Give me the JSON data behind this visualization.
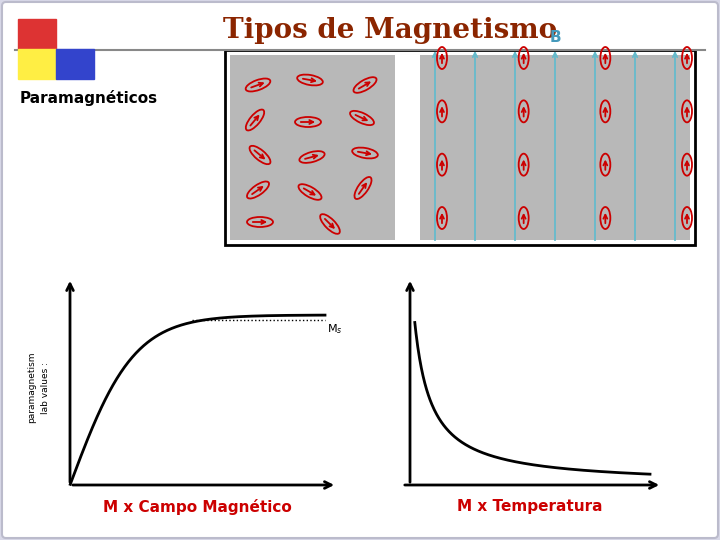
{
  "title": "Tipos de Magnetismo",
  "title_color": "#8B2500",
  "title_fontsize": 20,
  "outer_bg": "#D8D8E8",
  "paramagneticos_label": "Paramagnéticos",
  "xlabel1": "M x Campo Magnético",
  "xlabel2": "M x Temperatura",
  "ylabel1_line1": "paramagnetism",
  "ylabel1_line2": "lab values :",
  "ms_label": "M s",
  "label_color": "#CC0000",
  "separator_color": "#888888",
  "B_label_color": "#4499BB",
  "blue_line_color": "#66BBCC",
  "spin_color": "#CC0000",
  "gray_box_color": "#B8B8B8",
  "white_box_color": "#FFFFFF"
}
